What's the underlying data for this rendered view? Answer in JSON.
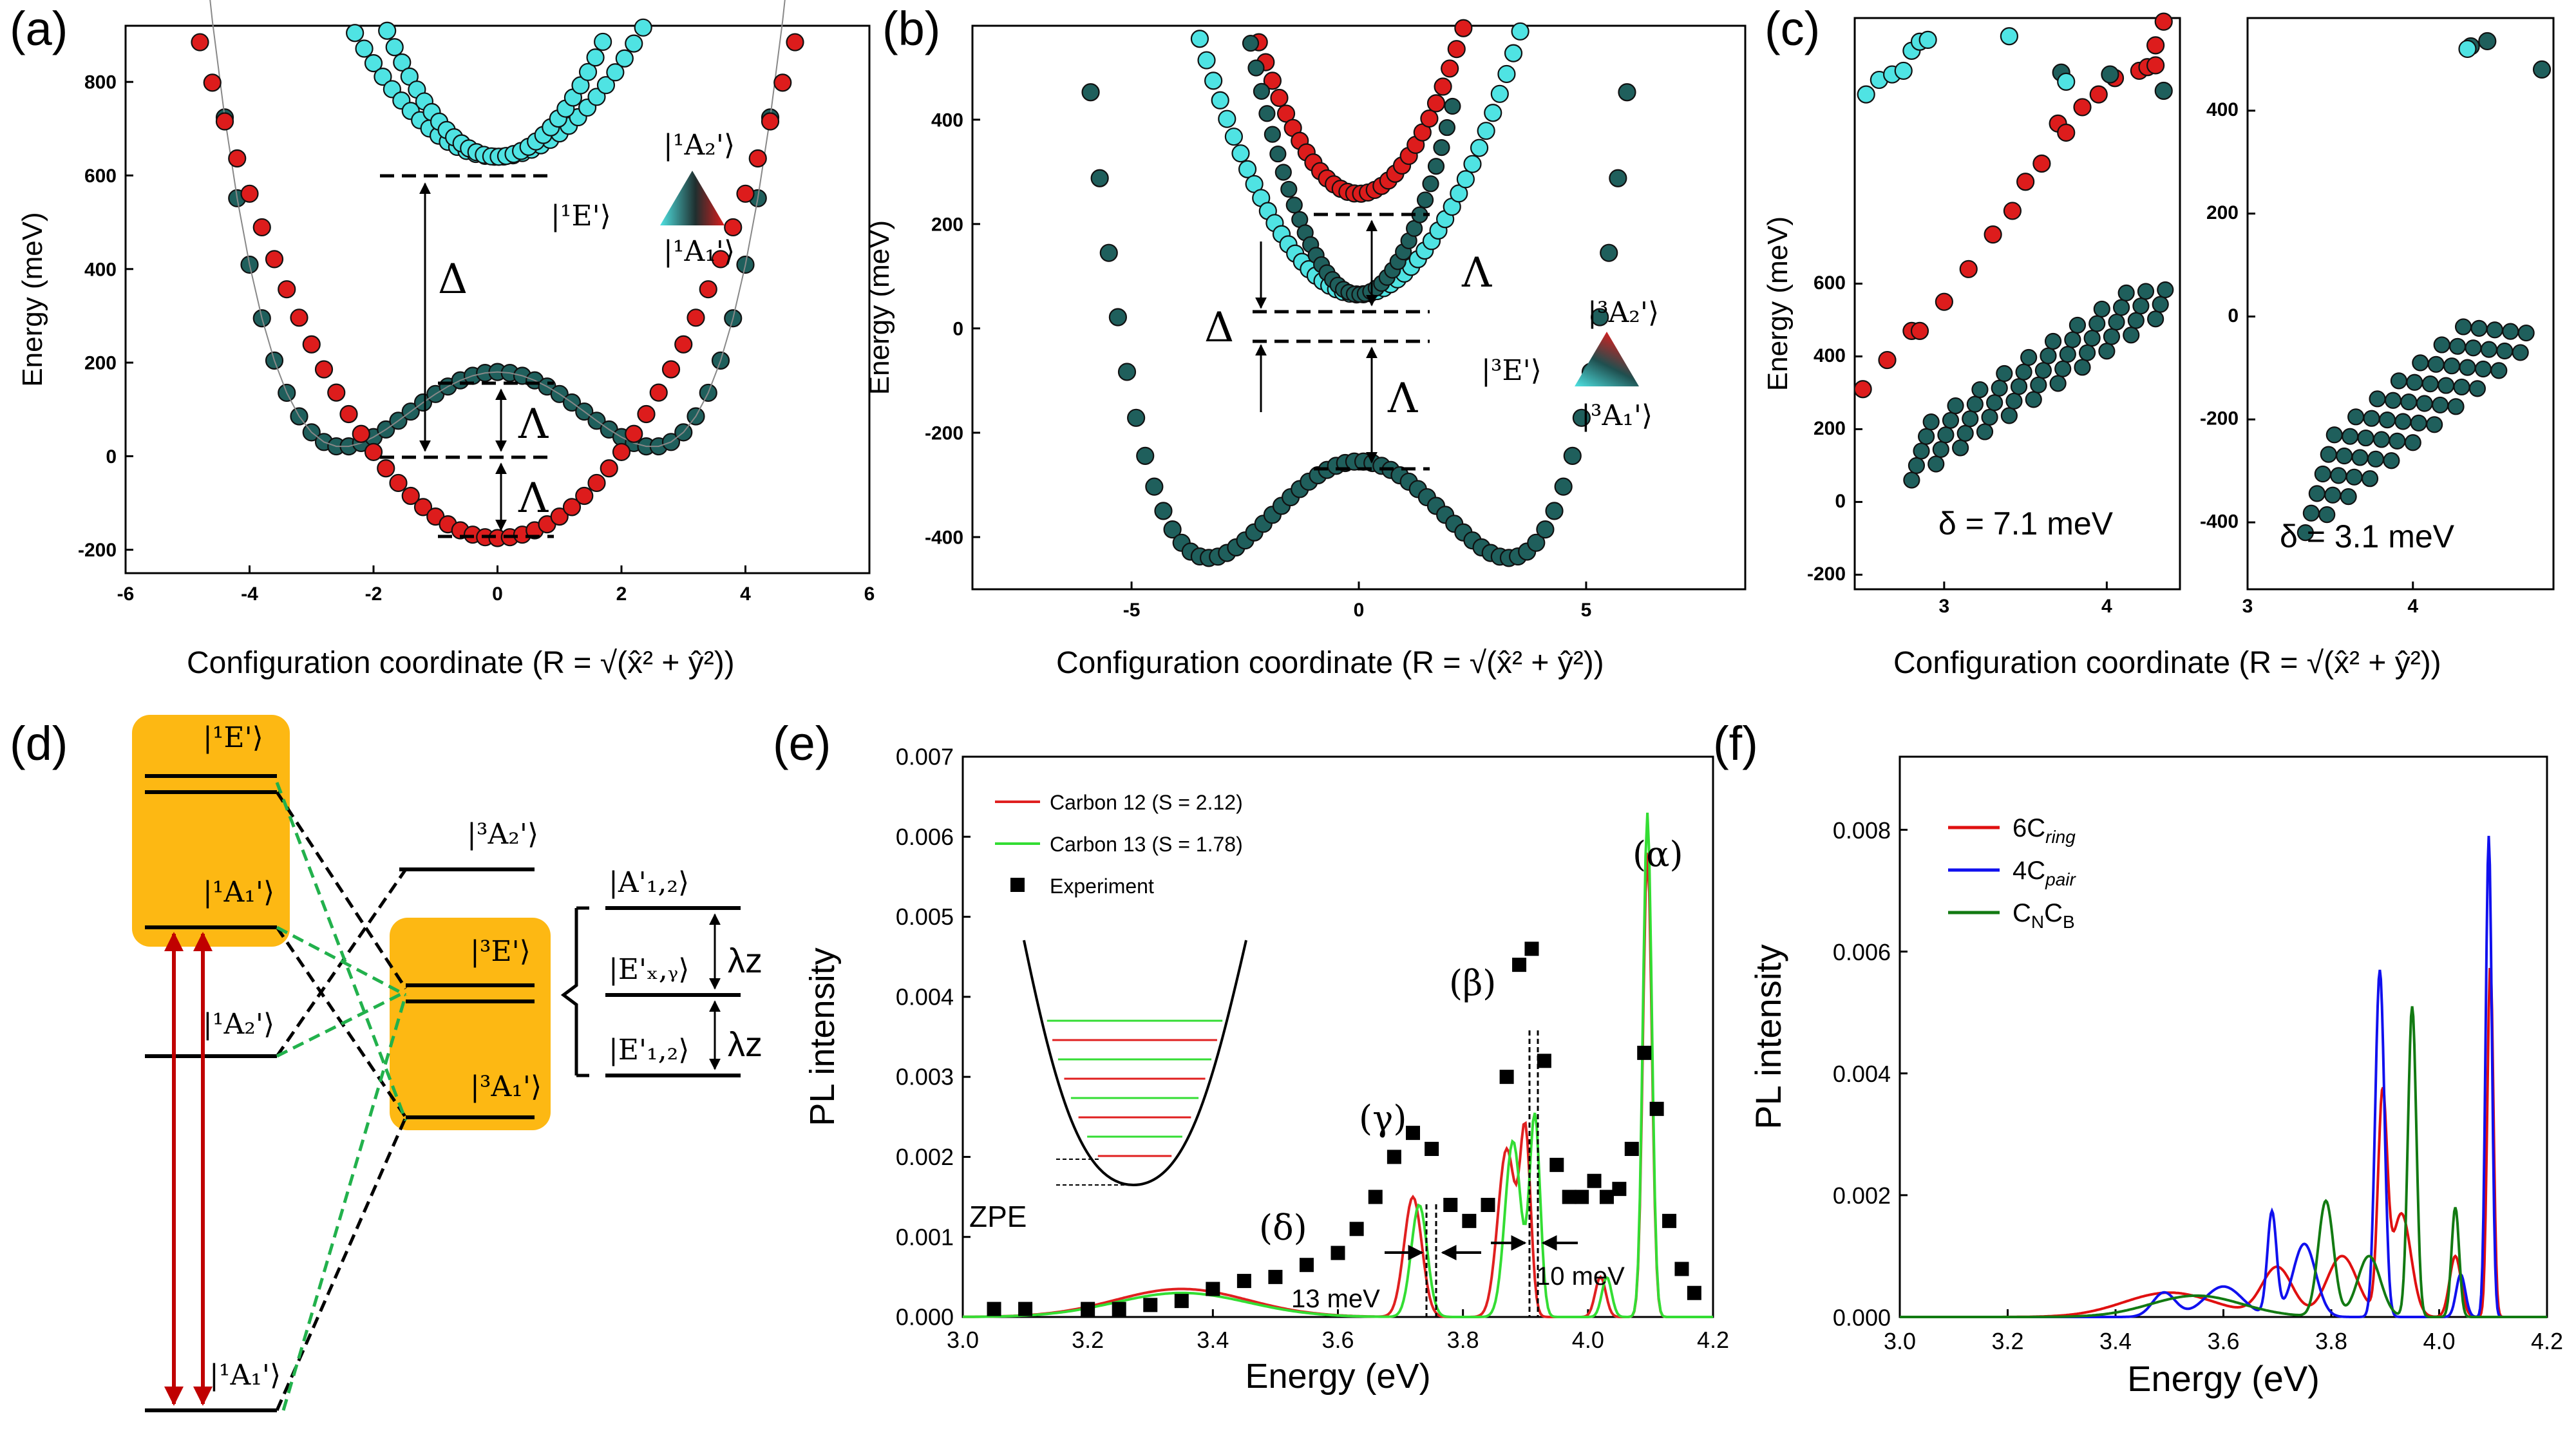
{
  "panel_labels": [
    "(a)",
    "(b)",
    "(c)",
    "(d)",
    "(e)",
    "(f)"
  ],
  "colors": {
    "red": "#dd1c1c",
    "cyan": "#4fe3e3",
    "teal": "#1f5f5c",
    "green_dash": "#22b14c",
    "orange": "#fdb813",
    "dark_red": "#c00000",
    "blue": "#1010ee",
    "dkgreen": "#1a7a1a"
  },
  "chart_data": [
    {
      "id": "a",
      "type": "scatter",
      "title": "",
      "xlabel": "Configuration coordinate (R = √(x̂² + ŷ²))",
      "ylabel": "Energy (meV)",
      "xlim": [
        -6,
        6
      ],
      "ylim": [
        -250,
        920
      ],
      "xticks": [
        "-6",
        "-4",
        "-2",
        "0",
        "2",
        "4",
        "6"
      ],
      "yticks": [
        "-200",
        "0",
        "200",
        "400",
        "600",
        "800"
      ],
      "series": [
        {
          "name": "|1E'⟩ lower (teal)",
          "shape": "mexican-hat",
          "center": 180,
          "minimum": 20,
          "min_at": 2.5,
          "x_range": [
            -6,
            6
          ]
        },
        {
          "name": "|1A1'⟩ (red)",
          "shape": "parabola",
          "minimum": -175,
          "curvature": 46,
          "x_range": [
            -5.2,
            5.2
          ]
        },
        {
          "name": "|1A2'⟩ (cyan, outer)",
          "shape": "parabola",
          "minimum": 640,
          "curvature": 50,
          "x_range": [
            -2.6,
            2.6
          ]
        },
        {
          "name": "|1A2'⟩ (cyan, inner)",
          "shape": "parabola",
          "minimum": 640,
          "curvature": 85,
          "x_range": [
            -1.9,
            2.2
          ]
        }
      ],
      "annotations": [
        "Δ",
        "Λ",
        "Λ"
      ],
      "legend": [
        "|¹A₂'⟩",
        "|¹E'⟩",
        "|¹A₁'⟩"
      ]
    },
    {
      "id": "b",
      "type": "scatter",
      "title": "",
      "xlabel": "Configuration coordinate (R = √(x̂² + ŷ²))",
      "ylabel": "Energy (meV)",
      "xlim": [
        -8.5,
        8.5
      ],
      "ylim": [
        -500,
        580
      ],
      "xticks": [
        "-5",
        "0",
        "5"
      ],
      "yticks": [
        "-400",
        "-200",
        "0",
        "200",
        "400"
      ],
      "series": [
        {
          "name": "|3A1'⟩ (teal)",
          "shape": "mexican-hat",
          "center": -255,
          "minimum": -440,
          "min_at": 3.3,
          "x_range": [
            -8.3,
            8.3
          ]
        },
        {
          "name": "|3A2'⟩ (red)",
          "shape": "parabola",
          "minimum": 258,
          "curvature": 60,
          "x_range": [
            -3.1,
            3.1
          ]
        },
        {
          "name": "|3E'⟩ (cyan, outer)",
          "shape": "parabola",
          "minimum": 65,
          "curvature": 40,
          "x_range": [
            -3.5,
            3.6
          ]
        },
        {
          "name": "|3E'⟩ (cyan, inner)",
          "shape": "parabola",
          "minimum": 65,
          "curvature": 85,
          "x_range": [
            -2.5,
            2.1
          ]
        }
      ],
      "annotations": [
        "Δ",
        "Λ",
        "Λ"
      ],
      "legend": [
        "|³A₂'⟩",
        "|³E'⟩",
        "|³A₁'⟩"
      ]
    },
    {
      "id": "c1",
      "type": "scatter",
      "title": "δ = 7.1 meV",
      "xlabel": "Configuration coordinate (R = √(x̂² + ŷ²))",
      "ylabel": "Energy (meV)",
      "xlim": [
        2.45,
        4.45
      ],
      "ylim": [
        -240,
        1330
      ],
      "xticks": [
        "3",
        "4"
      ],
      "yticks": [
        "-200",
        "0",
        "200",
        "400",
        "600"
      ]
    },
    {
      "id": "c2",
      "type": "scatter",
      "title": "δ = 3.1 meV",
      "xlabel": "",
      "ylabel": "",
      "xlim": [
        3.0,
        4.85
      ],
      "ylim": [
        -530,
        580
      ],
      "xticks": [
        "3",
        "4"
      ],
      "yticks": [
        "-400",
        "-200",
        "0",
        "200",
        "400"
      ]
    },
    {
      "id": "e",
      "type": "line",
      "title": "",
      "xlabel": "Energy (eV)",
      "ylabel": "PL intensity",
      "xlim": [
        3.0,
        4.2
      ],
      "ylim": [
        0,
        0.007
      ],
      "xticks": [
        "3.0",
        "3.2",
        "3.4",
        "3.6",
        "3.8",
        "4.0",
        "4.2"
      ],
      "yticks": [
        "0.000",
        "0.001",
        "0.002",
        "0.003",
        "0.004",
        "0.005",
        "0.006",
        "0.007"
      ],
      "series": [
        {
          "name": "Carbon 12 (S = 2.12)",
          "color": "#e02020",
          "peaks": [
            [
              3.35,
              0.00035,
              0.15
            ],
            [
              3.72,
              0.0015,
              0.02
            ],
            [
              3.87,
              0.0021,
              0.02
            ],
            [
              3.9,
              0.0022,
              0.012
            ],
            [
              4.02,
              0.0005,
              0.012
            ],
            [
              4.095,
              0.0058,
              0.01
            ]
          ]
        },
        {
          "name": "Carbon 13 (S = 1.78)",
          "color": "#33dd33",
          "peaks": [
            [
              3.35,
              0.0003,
              0.15
            ],
            [
              3.73,
              0.0014,
              0.018
            ],
            [
              3.88,
              0.0022,
              0.018
            ],
            [
              3.915,
              0.0025,
              0.012
            ],
            [
              4.03,
              0.0005,
              0.011
            ],
            [
              4.095,
              0.0063,
              0.01
            ]
          ]
        },
        {
          "name": "Experiment",
          "color": "#000000",
          "x": [
            3.05,
            3.1,
            3.2,
            3.25,
            3.3,
            3.35,
            3.4,
            3.45,
            3.5,
            3.55,
            3.6,
            3.63,
            3.66,
            3.69,
            3.72,
            3.75,
            3.78,
            3.81,
            3.84,
            3.87,
            3.89,
            3.91,
            3.93,
            3.95,
            3.97,
            3.99,
            4.01,
            4.03,
            4.05,
            4.07,
            4.09,
            4.11,
            4.13,
            4.15,
            4.17
          ],
          "y": [
            0.0001,
            0.0001,
            0.0001,
            0.0001,
            0.00015,
            0.0002,
            0.00035,
            0.00045,
            0.0005,
            0.00065,
            0.0008,
            0.0011,
            0.0015,
            0.002,
            0.0023,
            0.0021,
            0.0014,
            0.0012,
            0.0014,
            0.003,
            0.0044,
            0.0046,
            0.0032,
            0.0019,
            0.0015,
            0.0015,
            0.0017,
            0.0015,
            0.0016,
            0.0021,
            0.0033,
            0.0026,
            0.0012,
            0.0006,
            0.0003
          ]
        }
      ],
      "annotations": [
        "(α)",
        "(β)",
        "(γ)",
        "(δ)",
        "13 meV",
        "10 meV",
        "ZPE"
      ]
    },
    {
      "id": "f",
      "type": "line",
      "title": "",
      "xlabel": "Energy (eV)",
      "ylabel": "PL intensity",
      "xlim": [
        3.0,
        4.2
      ],
      "ylim": [
        0,
        0.0092
      ],
      "xticks": [
        "3.0",
        "3.2",
        "3.4",
        "3.6",
        "3.8",
        "4.0",
        "4.2"
      ],
      "yticks": [
        "0.000",
        "0.002",
        "0.004",
        "0.006",
        "0.008"
      ],
      "series": [
        {
          "name": "6Cring",
          "label_main": "6C",
          "label_sub": "ring",
          "color": "#e01010",
          "peaks": [
            [
              3.5,
              0.0004,
              0.12
            ],
            [
              3.7,
              0.0008,
              0.04
            ],
            [
              3.82,
              0.001,
              0.04
            ],
            [
              3.895,
              0.0035,
              0.012
            ],
            [
              3.93,
              0.0017,
              0.025
            ],
            [
              4.03,
              0.001,
              0.015
            ],
            [
              4.095,
              0.0058,
              0.008
            ]
          ]
        },
        {
          "name": "4Cpair",
          "label_main": "4C",
          "label_sub": "pair",
          "color": "#1010ee",
          "peaks": [
            [
              3.49,
              0.0004,
              0.03
            ],
            [
              3.6,
              0.0005,
              0.05
            ],
            [
              3.69,
              0.0017,
              0.012
            ],
            [
              3.75,
              0.0012,
              0.03
            ],
            [
              3.89,
              0.0057,
              0.012
            ],
            [
              4.04,
              0.0007,
              0.012
            ],
            [
              4.092,
              0.0079,
              0.008
            ]
          ]
        },
        {
          "name": "CNCB",
          "label_main": "C",
          "label_sub": "N",
          "label_main2": "C",
          "label_sub2": "B",
          "color": "#127a12",
          "peaks": [
            [
              3.55,
              0.00035,
              0.12
            ],
            [
              3.79,
              0.0019,
              0.02
            ],
            [
              3.87,
              0.001,
              0.03
            ],
            [
              3.95,
              0.0051,
              0.011
            ],
            [
              4.03,
              0.0018,
              0.01
            ]
          ]
        }
      ]
    }
  ],
  "diagram_d": {
    "singlet_upper": "|¹E'⟩",
    "singlet_a1_upper": "|¹A₁'⟩",
    "singlet_a2": "|¹A₂'⟩",
    "singlet_ground": "|¹A₁'⟩",
    "triplet_a2": "|³A₂'⟩",
    "triplet_e": "|³E'⟩",
    "triplet_a1": "|³A₁'⟩",
    "sub_a12": "|A'₁,₂⟩",
    "sub_exy": "|E'ₓ,ᵧ⟩",
    "sub_e12": "|E'₁,₂⟩",
    "lambda_z": "λz"
  }
}
